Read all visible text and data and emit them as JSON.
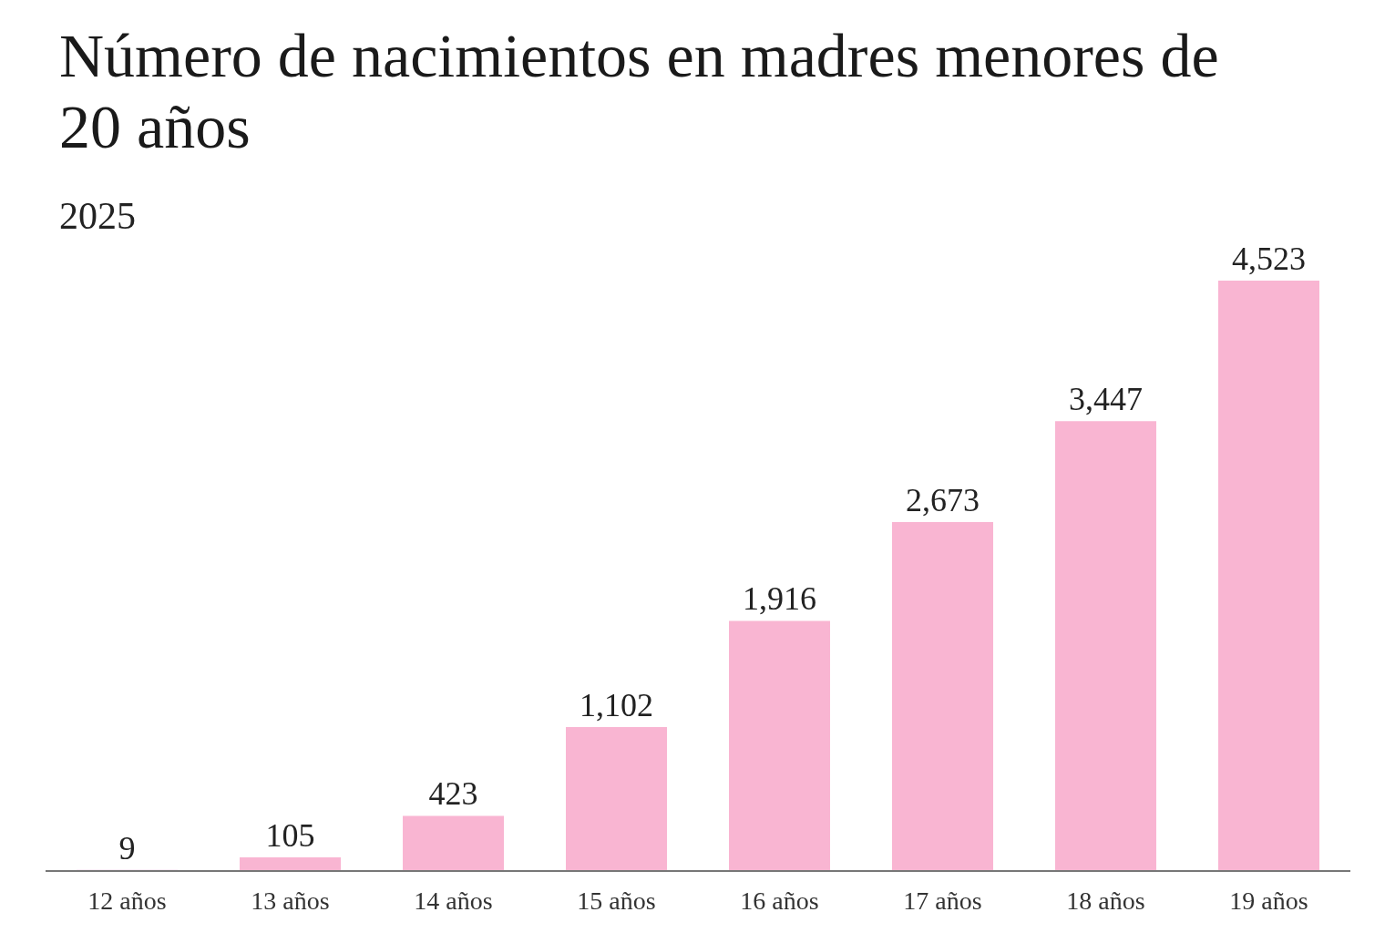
{
  "chart_data": {
    "type": "bar",
    "title": "Número de nacimientos en madres menores de 20 años",
    "subtitle": "2025",
    "categories": [
      "12 años",
      "13 años",
      "14 años",
      "15 años",
      "16 años",
      "17 años",
      "18 años",
      "19 años"
    ],
    "values": [
      9,
      105,
      423,
      1102,
      1916,
      2673,
      3447,
      4523
    ],
    "value_labels": [
      "9",
      "105",
      "423",
      "1,102",
      "1,916",
      "2,673",
      "3,447",
      "4,523"
    ],
    "color": "#f9b5d2"
  }
}
